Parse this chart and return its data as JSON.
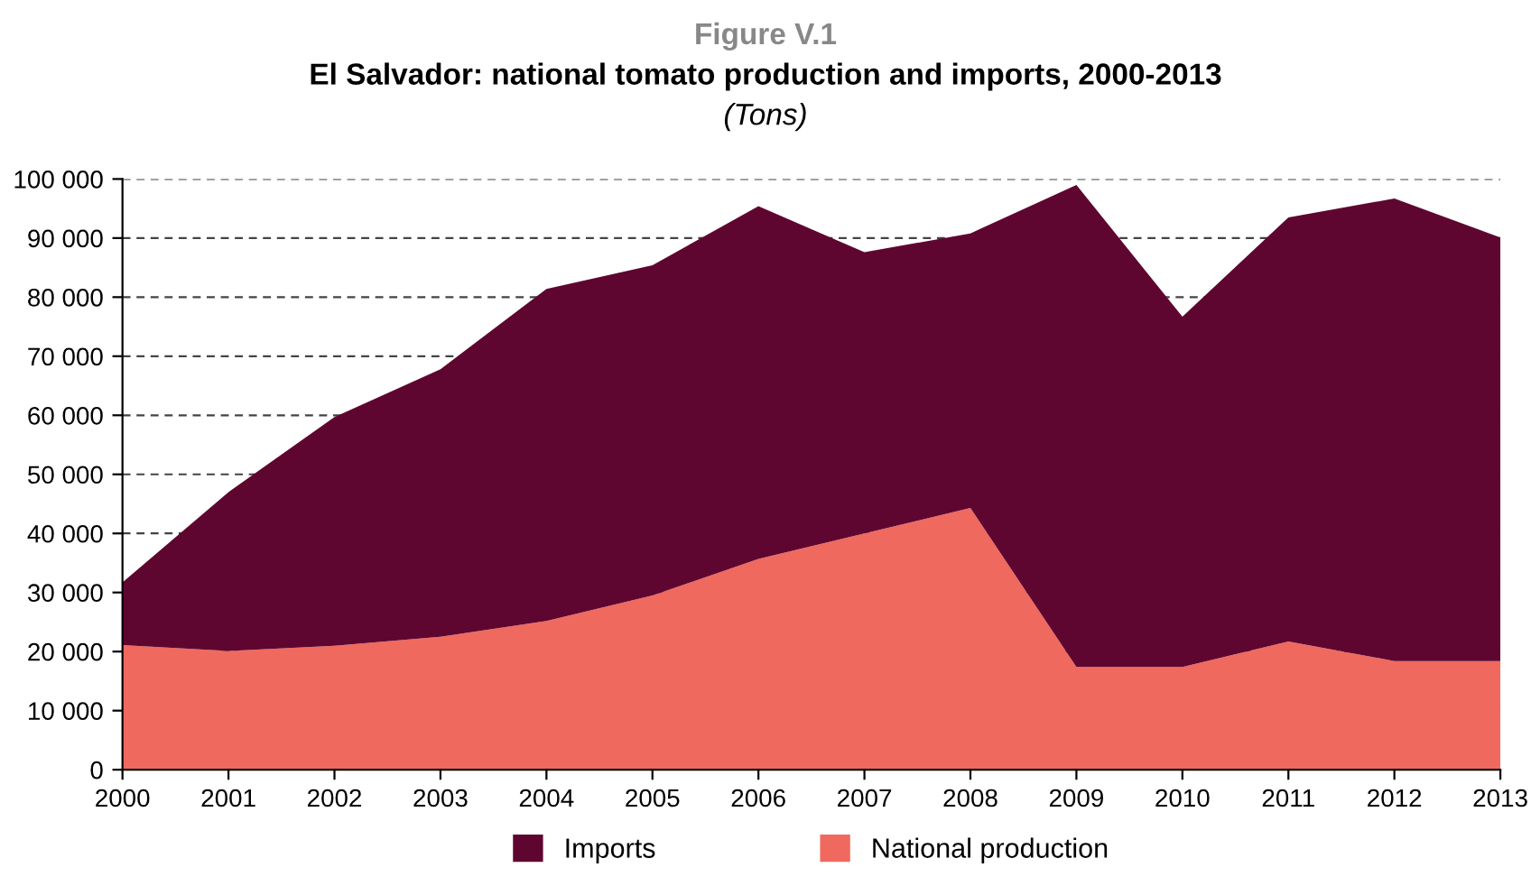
{
  "chart_data": {
    "type": "area",
    "stacked": true,
    "annotations": [
      "Figure V.1"
    ],
    "title": "El Salvador: national tomato production and imports, 2000-2013",
    "subtitle": "(Tons)",
    "x": [
      2000,
      2001,
      2002,
      2003,
      2004,
      2005,
      2006,
      2007,
      2008,
      2009,
      2010,
      2011,
      2012,
      2013
    ],
    "series": [
      {
        "name": "National production",
        "color": "#f0695e",
        "values": [
          21100,
          20100,
          21000,
          22500,
          25200,
          29500,
          35700,
          40000,
          44300,
          17400,
          17400,
          21700,
          18400,
          18400
        ]
      },
      {
        "name": "Imports",
        "color": "#5f0630",
        "values": [
          10600,
          26900,
          38700,
          45300,
          56200,
          55900,
          59700,
          47600,
          46500,
          81600,
          59300,
          71800,
          78300,
          71700
        ]
      }
    ],
    "xlim": [
      2000,
      2013
    ],
    "xticks": [
      2000,
      2001,
      2002,
      2003,
      2004,
      2005,
      2006,
      2007,
      2008,
      2009,
      2010,
      2011,
      2012,
      2013
    ],
    "ylim": [
      0,
      100000
    ],
    "yticks": [
      0,
      {
        "value": 10000,
        "label": "10 000"
      },
      {
        "value": 20000,
        "label": "20 000"
      },
      {
        "value": 30000,
        "label": "30 000"
      },
      {
        "value": 40000,
        "label": "40 000"
      },
      {
        "value": 50000,
        "label": "50 000"
      },
      {
        "value": 60000,
        "label": "60 000"
      },
      {
        "value": 70000,
        "label": "70 000"
      },
      {
        "value": 80000,
        "label": "80 000"
      },
      {
        "value": 90000,
        "label": "90 000"
      },
      {
        "value": 100000,
        "label": "100 000"
      }
    ],
    "grid": "y",
    "legend": "bottom"
  }
}
